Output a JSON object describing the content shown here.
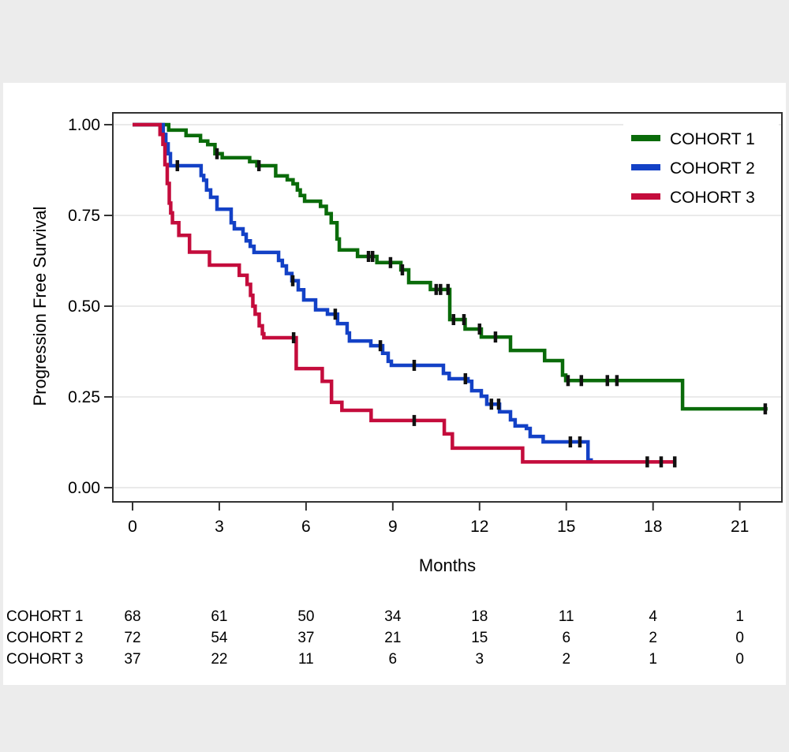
{
  "figure": {
    "outer_background": "#ececec",
    "panel_background": "#ffffff",
    "frame_color": "#333333",
    "gridline_color": "#e4e4e4",
    "censor_color": "#111111"
  },
  "chart_data": {
    "type": "line",
    "subtype": "kaplan-meier-step",
    "title": "",
    "xlabel": "Months",
    "ylabel": "Progression Free Survival",
    "xlim": [
      0,
      22.4
    ],
    "ylim": [
      0,
      1
    ],
    "grid": "horizontal-only",
    "x_ticks": [
      {
        "value": 0,
        "label": "0"
      },
      {
        "value": 3,
        "label": "3"
      },
      {
        "value": 6,
        "label": "6"
      },
      {
        "value": 9,
        "label": "9"
      },
      {
        "value": 12,
        "label": "12"
      },
      {
        "value": 15,
        "label": "15"
      },
      {
        "value": 18,
        "label": "18"
      },
      {
        "value": 21,
        "label": "21"
      }
    ],
    "y_ticks": [
      {
        "value": 1.0,
        "label": "1.00"
      },
      {
        "value": 0.75,
        "label": "0.75"
      },
      {
        "value": 0.5,
        "label": "0.50"
      },
      {
        "value": 0.25,
        "label": "0.25"
      },
      {
        "value": 0.0,
        "label": "0.00"
      }
    ],
    "legend": {
      "position": "top-right"
    },
    "series": [
      {
        "name": "COHORT 1",
        "color": "#0a6b0a",
        "steps": [
          [
            0,
            1.0
          ],
          [
            1.25,
            0.985
          ],
          [
            1.85,
            0.97
          ],
          [
            2.35,
            0.955
          ],
          [
            2.6,
            0.945
          ],
          [
            2.85,
            0.92
          ],
          [
            3.1,
            0.909
          ],
          [
            4.05,
            0.898
          ],
          [
            4.3,
            0.887
          ],
          [
            4.95,
            0.859
          ],
          [
            5.35,
            0.848
          ],
          [
            5.55,
            0.837
          ],
          [
            5.7,
            0.82
          ],
          [
            5.8,
            0.805
          ],
          [
            5.95,
            0.789
          ],
          [
            6.5,
            0.775
          ],
          [
            6.7,
            0.755
          ],
          [
            6.87,
            0.73
          ],
          [
            7.07,
            0.685
          ],
          [
            7.15,
            0.655
          ],
          [
            7.78,
            0.637
          ],
          [
            8.45,
            0.62
          ],
          [
            9.28,
            0.6
          ],
          [
            9.55,
            0.565
          ],
          [
            10.3,
            0.546
          ],
          [
            10.97,
            0.463
          ],
          [
            11.5,
            0.437
          ],
          [
            12.06,
            0.415
          ],
          [
            13.07,
            0.378
          ],
          [
            14.25,
            0.35
          ],
          [
            14.87,
            0.31
          ],
          [
            14.98,
            0.295
          ],
          [
            19.02,
            0.217
          ]
        ],
        "end_time": 21.96,
        "censor_times": [
          2.92,
          4.37,
          8.16,
          8.3,
          8.92,
          9.33,
          10.5,
          10.65,
          10.91,
          11.1,
          11.46,
          12.0,
          12.55,
          15.06,
          15.52,
          16.42,
          16.75,
          21.88
        ]
      },
      {
        "name": "COHORT 2",
        "color": "#1341c6",
        "steps": [
          [
            0,
            1.0
          ],
          [
            1.06,
            0.973
          ],
          [
            1.15,
            0.947
          ],
          [
            1.23,
            0.92
          ],
          [
            1.31,
            0.887
          ],
          [
            2.37,
            0.86
          ],
          [
            2.46,
            0.847
          ],
          [
            2.56,
            0.82
          ],
          [
            2.7,
            0.8
          ],
          [
            2.92,
            0.767
          ],
          [
            3.41,
            0.73
          ],
          [
            3.52,
            0.713
          ],
          [
            3.82,
            0.698
          ],
          [
            3.93,
            0.68
          ],
          [
            4.07,
            0.665
          ],
          [
            4.2,
            0.648
          ],
          [
            5.05,
            0.626
          ],
          [
            5.18,
            0.611
          ],
          [
            5.32,
            0.59
          ],
          [
            5.51,
            0.57
          ],
          [
            5.73,
            0.545
          ],
          [
            5.92,
            0.517
          ],
          [
            6.33,
            0.49
          ],
          [
            6.74,
            0.478
          ],
          [
            7.09,
            0.452
          ],
          [
            7.42,
            0.426
          ],
          [
            7.5,
            0.404
          ],
          [
            8.24,
            0.391
          ],
          [
            8.65,
            0.37
          ],
          [
            8.84,
            0.348
          ],
          [
            8.95,
            0.337
          ],
          [
            10.75,
            0.315
          ],
          [
            10.95,
            0.3
          ],
          [
            11.6,
            0.293
          ],
          [
            11.73,
            0.267
          ],
          [
            12.06,
            0.252
          ],
          [
            12.25,
            0.23
          ],
          [
            12.69,
            0.209
          ],
          [
            13.07,
            0.187
          ],
          [
            13.23,
            0.17
          ],
          [
            13.62,
            0.163
          ],
          [
            13.75,
            0.141
          ],
          [
            14.2,
            0.126
          ],
          [
            15.75,
            0.076
          ]
        ],
        "end_time": 15.92,
        "censor_times": [
          1.55,
          5.54,
          7.01,
          8.57,
          9.74,
          11.51,
          12.41,
          12.66,
          15.14,
          15.47
        ]
      },
      {
        "name": "COHORT 3",
        "color": "#c40c3c",
        "steps": [
          [
            0,
            1.0
          ],
          [
            0.95,
            0.973
          ],
          [
            1.05,
            0.946
          ],
          [
            1.12,
            0.89
          ],
          [
            1.2,
            0.838
          ],
          [
            1.27,
            0.784
          ],
          [
            1.32,
            0.757
          ],
          [
            1.38,
            0.73
          ],
          [
            1.6,
            0.695
          ],
          [
            1.97,
            0.649
          ],
          [
            2.66,
            0.613
          ],
          [
            3.69,
            0.585
          ],
          [
            3.96,
            0.56
          ],
          [
            4.08,
            0.53
          ],
          [
            4.16,
            0.5
          ],
          [
            4.24,
            0.478
          ],
          [
            4.38,
            0.446
          ],
          [
            4.49,
            0.424
          ],
          [
            4.54,
            0.413
          ],
          [
            5.66,
            0.328
          ],
          [
            6.56,
            0.293
          ],
          [
            6.88,
            0.235
          ],
          [
            7.24,
            0.213
          ],
          [
            8.25,
            0.185
          ],
          [
            10.78,
            0.148
          ],
          [
            11.06,
            0.109
          ],
          [
            13.49,
            0.071
          ]
        ],
        "end_time": 18.76,
        "censor_times": [
          5.57,
          9.74,
          17.8,
          18.28,
          18.75
        ]
      }
    ]
  },
  "risk_table": {
    "times": [
      0,
      3,
      6,
      9,
      12,
      15,
      18,
      21
    ],
    "rows": [
      {
        "label": "COHORT 1",
        "counts": [
          68,
          61,
          50,
          34,
          18,
          11,
          4,
          1
        ]
      },
      {
        "label": "COHORT 2",
        "counts": [
          72,
          54,
          37,
          21,
          15,
          6,
          2,
          0
        ]
      },
      {
        "label": "COHORT 3",
        "counts": [
          37,
          22,
          11,
          6,
          3,
          2,
          1,
          0
        ]
      }
    ]
  }
}
